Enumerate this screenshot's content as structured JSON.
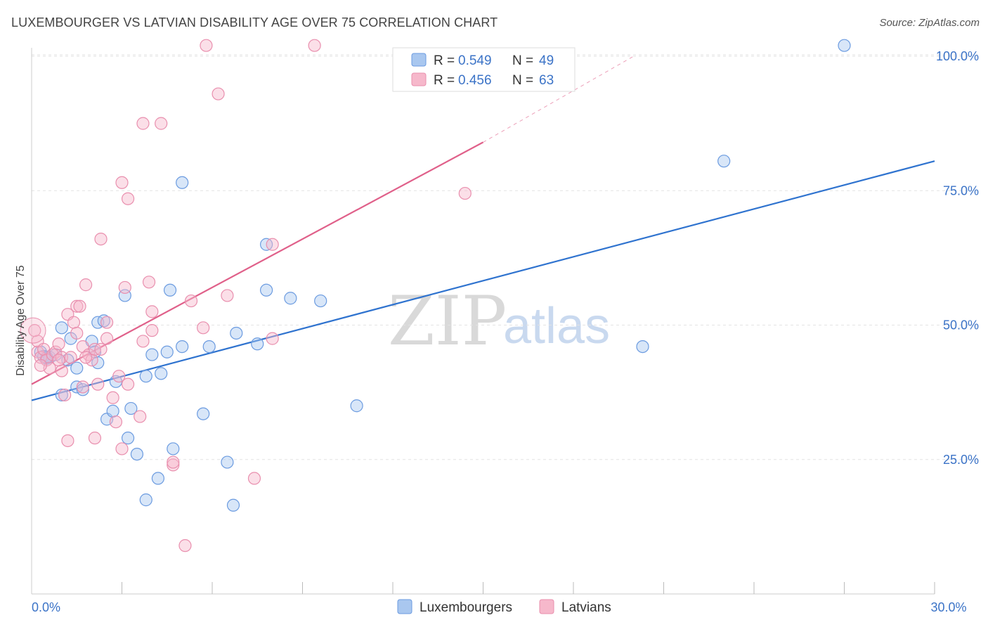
{
  "header": {
    "title": "LUXEMBOURGER VS LATVIAN DISABILITY AGE OVER 75 CORRELATION CHART",
    "source": "Source: ZipAtlas.com"
  },
  "watermark": {
    "zip": "ZIP",
    "atlas": "atlas"
  },
  "colors": {
    "blue_fill": "#a9c7ef",
    "blue_stroke": "#6b9be0",
    "blue_line": "#2f73cf",
    "pink_fill": "#f6b8cb",
    "pink_stroke": "#e98fae",
    "pink_line": "#e0608a",
    "axis_text": "#3b73c7",
    "grid": "#e3e3e3"
  },
  "legend": {
    "blue": {
      "r_label": "R = ",
      "r_value": "0.549",
      "n_label": "N = ",
      "n_value": "49"
    },
    "pink": {
      "r_label": "R = ",
      "r_value": "0.456",
      "n_label": "N = ",
      "n_value": "63"
    }
  },
  "chart_data": {
    "type": "scatter",
    "title": "LUXEMBOURGER VS LATVIAN DISABILITY AGE OVER 75 CORRELATION CHART",
    "xlabel": "",
    "ylabel": "Disability Age Over 75",
    "xlim": [
      0,
      30
    ],
    "ylim": [
      0,
      100
    ],
    "x_tick_labels": [
      {
        "value": 0,
        "label": "0.0%"
      },
      {
        "value": 30,
        "label": "30.0%"
      }
    ],
    "y_tick_labels": [
      {
        "value": 25,
        "label": "25.0%"
      },
      {
        "value": 50,
        "label": "50.0%"
      },
      {
        "value": 75,
        "label": "75.0%"
      },
      {
        "value": 100,
        "label": "100.0%"
      }
    ],
    "x_minor_ticks": [
      3,
      6,
      9,
      12,
      15,
      18,
      21,
      24,
      27,
      30
    ],
    "series": [
      {
        "name": "Luxembourgers",
        "color": "#6b9be0",
        "points": [
          [
            0.3,
            45.0
          ],
          [
            0.4,
            44.2
          ],
          [
            0.5,
            43.8
          ],
          [
            0.6,
            44.0
          ],
          [
            0.8,
            44.5
          ],
          [
            1.0,
            49.5
          ],
          [
            1.0,
            37.0
          ],
          [
            1.3,
            47.5
          ],
          [
            1.5,
            42.0
          ],
          [
            1.5,
            38.5
          ],
          [
            1.7,
            38.0
          ],
          [
            2.0,
            47.0
          ],
          [
            2.1,
            45.0
          ],
          [
            2.2,
            50.5
          ],
          [
            2.2,
            43.0
          ],
          [
            2.4,
            50.8
          ],
          [
            2.5,
            32.5
          ],
          [
            2.7,
            34.0
          ],
          [
            2.8,
            39.5
          ],
          [
            3.1,
            55.5
          ],
          [
            3.2,
            29.0
          ],
          [
            3.3,
            34.5
          ],
          [
            3.5,
            26.0
          ],
          [
            3.8,
            40.5
          ],
          [
            3.8,
            17.5
          ],
          [
            4.0,
            44.5
          ],
          [
            4.2,
            21.5
          ],
          [
            4.3,
            41.0
          ],
          [
            4.5,
            45.0
          ],
          [
            4.6,
            56.5
          ],
          [
            4.7,
            27.0
          ],
          [
            5.0,
            76.5
          ],
          [
            5.0,
            46.0
          ],
          [
            5.7,
            33.5
          ],
          [
            5.9,
            46.0
          ],
          [
            6.5,
            24.5
          ],
          [
            6.7,
            16.5
          ],
          [
            6.8,
            48.5
          ],
          [
            7.5,
            46.5
          ],
          [
            7.8,
            65.0
          ],
          [
            7.8,
            56.5
          ],
          [
            8.6,
            55.0
          ],
          [
            9.6,
            54.5
          ],
          [
            10.8,
            35.0
          ],
          [
            20.3,
            46.0
          ],
          [
            23.0,
            80.5
          ],
          [
            27.0,
            102.0
          ],
          [
            0.5,
            44.0
          ],
          [
            1.2,
            43.5
          ]
        ]
      },
      {
        "name": "Latvians",
        "color": "#e98fae",
        "points": [
          [
            0.2,
            45.0
          ],
          [
            0.2,
            47.0
          ],
          [
            0.3,
            44.0
          ],
          [
            0.4,
            45.5
          ],
          [
            0.5,
            43.5
          ],
          [
            0.6,
            42.0
          ],
          [
            0.7,
            44.5
          ],
          [
            0.8,
            45.0
          ],
          [
            0.9,
            46.5
          ],
          [
            1.0,
            44.0
          ],
          [
            1.0,
            41.5
          ],
          [
            1.1,
            37.0
          ],
          [
            1.2,
            28.5
          ],
          [
            1.2,
            52.0
          ],
          [
            1.3,
            44.0
          ],
          [
            1.4,
            50.5
          ],
          [
            1.5,
            53.5
          ],
          [
            1.5,
            48.5
          ],
          [
            1.6,
            53.5
          ],
          [
            1.7,
            38.5
          ],
          [
            1.7,
            46.0
          ],
          [
            1.8,
            57.5
          ],
          [
            1.9,
            44.5
          ],
          [
            2.0,
            43.5
          ],
          [
            2.1,
            45.5
          ],
          [
            2.1,
            29.0
          ],
          [
            2.2,
            39.0
          ],
          [
            2.3,
            45.5
          ],
          [
            2.3,
            66.0
          ],
          [
            2.5,
            47.5
          ],
          [
            2.5,
            50.5
          ],
          [
            2.7,
            36.5
          ],
          [
            2.8,
            32.0
          ],
          [
            2.9,
            40.5
          ],
          [
            3.0,
            76.5
          ],
          [
            3.0,
            27.0
          ],
          [
            3.1,
            57.0
          ],
          [
            3.2,
            39.0
          ],
          [
            3.2,
            73.5
          ],
          [
            3.6,
            33.0
          ],
          [
            3.7,
            87.5
          ],
          [
            3.7,
            47.0
          ],
          [
            3.9,
            58.0
          ],
          [
            4.0,
            52.5
          ],
          [
            4.0,
            49.0
          ],
          [
            4.3,
            87.5
          ],
          [
            4.7,
            24.0
          ],
          [
            4.7,
            24.5
          ],
          [
            5.1,
            9.0
          ],
          [
            5.3,
            54.5
          ],
          [
            5.7,
            49.5
          ],
          [
            5.8,
            102.0
          ],
          [
            6.2,
            93.0
          ],
          [
            6.5,
            55.5
          ],
          [
            7.4,
            21.5
          ],
          [
            8.0,
            65.0
          ],
          [
            8.0,
            47.5
          ],
          [
            9.4,
            102.0
          ],
          [
            14.4,
            74.5
          ],
          [
            0.1,
            49.0
          ],
          [
            0.3,
            42.5
          ],
          [
            0.9,
            43.5
          ],
          [
            1.8,
            44.0
          ]
        ]
      }
    ],
    "trendlines": [
      {
        "series": "Luxembourgers",
        "x0": 0,
        "y0": 36.0,
        "x1": 30,
        "y1": 80.5,
        "dashed_extension": false
      },
      {
        "series": "Latvians",
        "x0": 0,
        "y0": 39.0,
        "x1": 15,
        "y1": 84.0,
        "dashed_to_x": 20,
        "dashed_to_y": 100.0
      }
    ],
    "legend_position": "top-center",
    "grid": true
  },
  "bottom_legend": [
    {
      "label": "Luxembourgers",
      "color": "#a9c7ef"
    },
    {
      "label": "Latvians",
      "color": "#f6b8cb"
    }
  ]
}
